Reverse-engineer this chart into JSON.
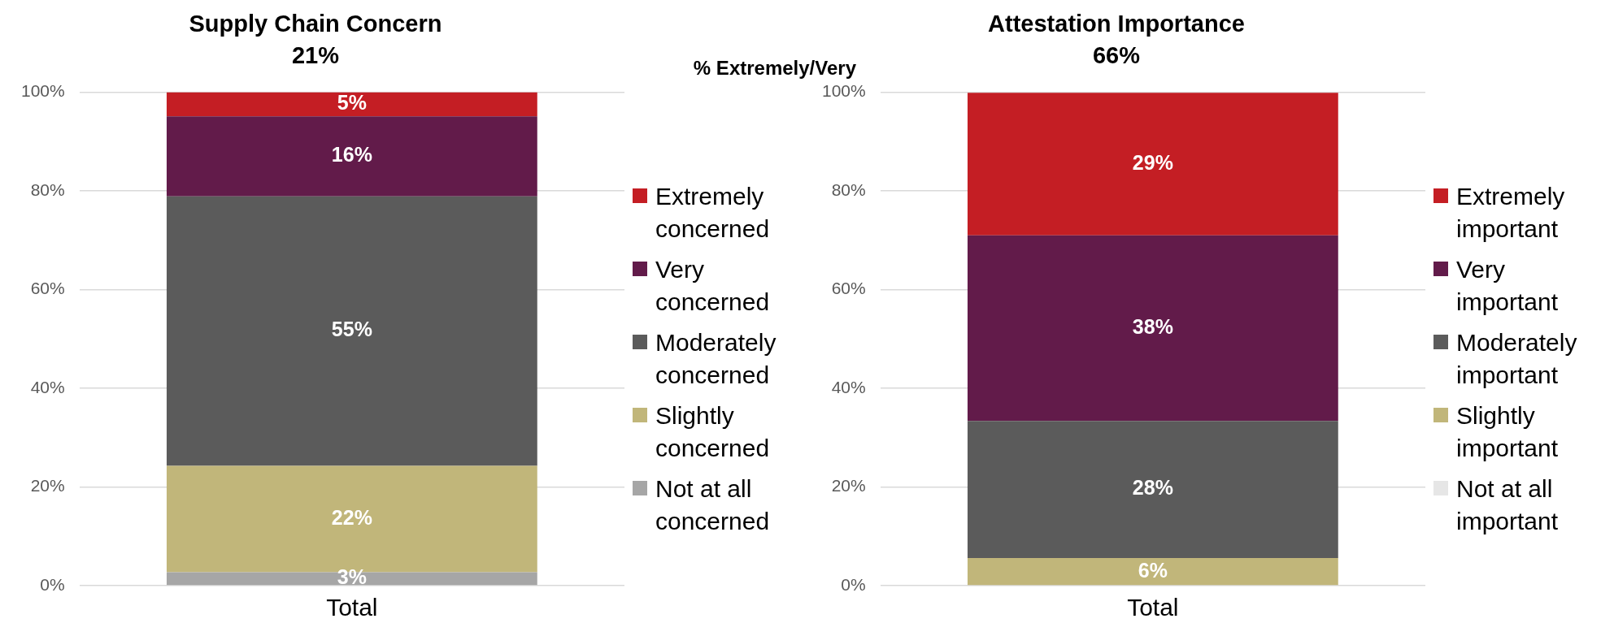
{
  "chart_data": [
    {
      "type": "bar",
      "stacked": true,
      "title": "Supply Chain Concern",
      "subtitle": "21%",
      "categories": [
        "Total"
      ],
      "ylim": [
        0,
        100
      ],
      "yticks": [
        {
          "value": 0,
          "label": "0%"
        },
        {
          "value": 20,
          "label": "20%"
        },
        {
          "value": 40,
          "label": "40%"
        },
        {
          "value": 60,
          "label": "60%"
        },
        {
          "value": 80,
          "label": "80%"
        },
        {
          "value": 100,
          "label": "100%"
        }
      ],
      "grid": "y",
      "legend": "right",
      "annotations": [
        "% Extremely/Very"
      ],
      "series": [
        {
          "name": "Not at all concerned",
          "color": "#a6a6a6",
          "values": [
            2.7
          ],
          "value_labels": [
            "3%"
          ]
        },
        {
          "name": "Slightly concerned",
          "color": "#c1b67a",
          "values": [
            21.6
          ],
          "value_labels": [
            "22%"
          ]
        },
        {
          "name": "Moderately concerned",
          "color": "#5b5b5b",
          "values": [
            54.6
          ],
          "value_labels": [
            "55%"
          ]
        },
        {
          "name": "Very concerned",
          "color": "#621b4a",
          "values": [
            16.2
          ],
          "value_labels": [
            "16%"
          ]
        },
        {
          "name": "Extremely concerned",
          "color": "#c41e24",
          "values": [
            4.9
          ],
          "value_labels": [
            "5%"
          ]
        }
      ]
    },
    {
      "type": "bar",
      "stacked": true,
      "title": "Attestation Importance",
      "subtitle": "66%",
      "categories": [
        "Total"
      ],
      "ylim": [
        0,
        100
      ],
      "yticks": [
        {
          "value": 0,
          "label": "0%"
        },
        {
          "value": 20,
          "label": "20%"
        },
        {
          "value": 40,
          "label": "40%"
        },
        {
          "value": 60,
          "label": "60%"
        },
        {
          "value": 80,
          "label": "80%"
        },
        {
          "value": 100,
          "label": "100%"
        }
      ],
      "grid": "y",
      "legend": "right",
      "series": [
        {
          "name": "Not at all important",
          "color": "#e6e6e6",
          "values": [
            0
          ],
          "value_labels": [
            null
          ]
        },
        {
          "name": "Slightly important",
          "color": "#c1b67a",
          "values": [
            5.6
          ],
          "value_labels": [
            "6%"
          ]
        },
        {
          "name": "Moderately important",
          "color": "#5b5b5b",
          "values": [
            27.8
          ],
          "value_labels": [
            "28%"
          ]
        },
        {
          "name": "Very important",
          "color": "#621b4a",
          "values": [
            37.6
          ],
          "value_labels": [
            "38%"
          ]
        },
        {
          "name": "Extremely important",
          "color": "#c41e24",
          "values": [
            28.9
          ],
          "value_labels": [
            "29%"
          ]
        }
      ]
    }
  ]
}
